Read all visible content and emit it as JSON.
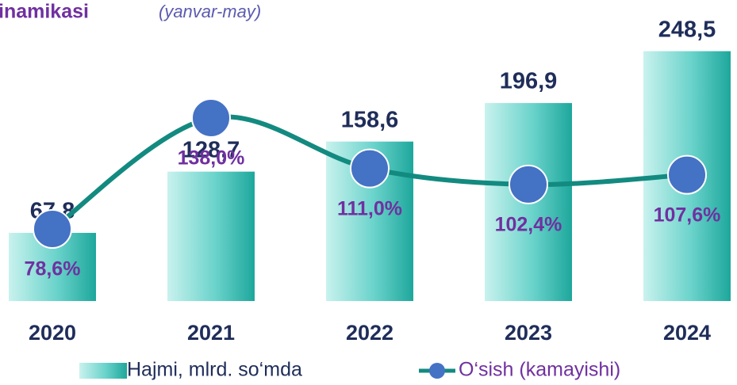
{
  "chart_data": {
    "type": "bar-line",
    "title": "inamikasi",
    "subtitle": "(yanvar-may)",
    "categories": [
      "2020",
      "2021",
      "2022",
      "2023",
      "2024"
    ],
    "series": [
      {
        "name": "Hajmi, mlrd. so‘mda",
        "type": "bar",
        "color": "#35bdb3",
        "values": [
          67.8,
          128.7,
          158.6,
          196.9,
          248.5
        ],
        "value_labels": [
          "67,8",
          "128,7",
          "158,6",
          "196,9",
          "248,5"
        ]
      },
      {
        "name": "O‘sish (kamayishi)",
        "type": "line",
        "axis": "y2",
        "color": "#138a80",
        "marker_color": "#4472c4",
        "values": [
          78.6,
          138.0,
          111.0,
          102.4,
          107.6
        ],
        "value_labels": [
          "78,6%",
          "138,0%",
          "111,0%",
          "102,4%",
          "107,6%"
        ]
      }
    ],
    "ylim": [
      0,
      260
    ],
    "y2lim": [
      40,
      180
    ]
  }
}
